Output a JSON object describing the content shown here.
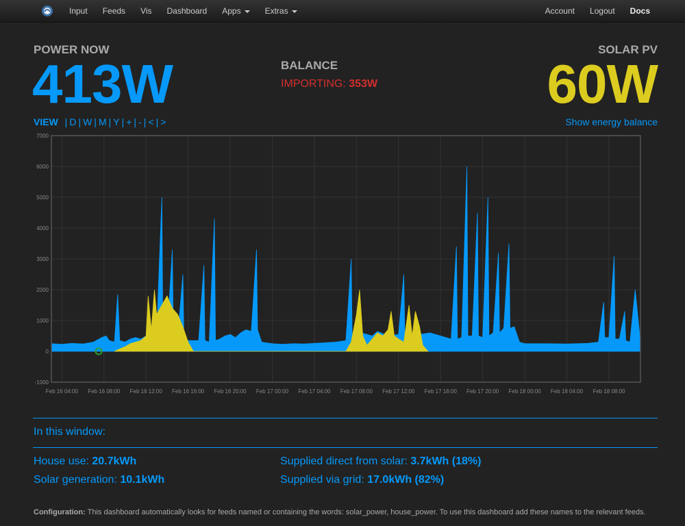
{
  "navbar": {
    "left_items": [
      {
        "label": "Input",
        "caret": false,
        "name": "nav-input"
      },
      {
        "label": "Feeds",
        "caret": false,
        "name": "nav-feeds"
      },
      {
        "label": "Vis",
        "caret": false,
        "name": "nav-vis"
      },
      {
        "label": "Dashboard",
        "caret": false,
        "name": "nav-dashboard"
      },
      {
        "label": "Apps",
        "caret": true,
        "name": "nav-apps"
      },
      {
        "label": "Extras",
        "caret": true,
        "name": "nav-extras"
      }
    ],
    "right_items": [
      {
        "label": "Account",
        "bold": false,
        "name": "nav-account"
      },
      {
        "label": "Logout",
        "bold": false,
        "name": "nav-logout"
      },
      {
        "label": "Docs",
        "bold": true,
        "name": "nav-docs"
      }
    ]
  },
  "header": {
    "power_now_label": "POWER NOW",
    "power_now_value": "413W",
    "balance_label": "BALANCE",
    "balance_prefix": "IMPORTING: ",
    "balance_value": "353W",
    "solar_label": "SOLAR PV",
    "solar_value": "60W"
  },
  "view": {
    "label": "VIEW",
    "buttons": [
      "D",
      "W",
      "M",
      "Y",
      "+",
      "-",
      "<",
      ">"
    ],
    "show_balance": "Show energy balance"
  },
  "colors": {
    "use": "#0699fa",
    "solar": "#dccc1f",
    "importing": "#d52e2e",
    "marker": "#2ca02c"
  },
  "chart_data": {
    "type": "area",
    "ylim": [
      -1000,
      7000
    ],
    "yticks": [
      -1000,
      0,
      1000,
      2000,
      3000,
      4000,
      5000,
      6000,
      7000
    ],
    "xlim_hours": [
      -1,
      55
    ],
    "xticks": [
      {
        "label": "Feb 16 04:00",
        "hour": 0
      },
      {
        "label": "Feb 16 08:00",
        "hour": 4
      },
      {
        "label": "Feb 16 12:00",
        "hour": 8
      },
      {
        "label": "Feb 16 16:00",
        "hour": 12
      },
      {
        "label": "Feb 16 20:00",
        "hour": 16
      },
      {
        "label": "Feb 17 00:00",
        "hour": 20
      },
      {
        "label": "Feb 17 04:00",
        "hour": 24
      },
      {
        "label": "Feb 17 08:00",
        "hour": 28
      },
      {
        "label": "Feb 17 12:00",
        "hour": 32
      },
      {
        "label": "Feb 17 16:00",
        "hour": 36
      },
      {
        "label": "Feb 17 20:00",
        "hour": 40
      },
      {
        "label": "Feb 18 00:00",
        "hour": 44
      },
      {
        "label": "Feb 18 04:00",
        "hour": 48
      },
      {
        "label": "Feb 18 08:00",
        "hour": 52
      }
    ],
    "grid": true,
    "series": [
      {
        "key": "house_power",
        "color": "#0699fa",
        "points": [
          [
            -1,
            250
          ],
          [
            0,
            230
          ],
          [
            1,
            260
          ],
          [
            2,
            240
          ],
          [
            3,
            300
          ],
          [
            3.8,
            450
          ],
          [
            4.2,
            500
          ],
          [
            4.5,
            350
          ],
          [
            5,
            300
          ],
          [
            5.3,
            1850
          ],
          [
            5.5,
            350
          ],
          [
            6,
            300
          ],
          [
            6.5,
            400
          ],
          [
            7,
            450
          ],
          [
            7.5,
            400
          ],
          [
            8,
            500
          ],
          [
            8.5,
            600
          ],
          [
            9,
            550
          ],
          [
            9.5,
            5000
          ],
          [
            9.6,
            600
          ],
          [
            10,
            500
          ],
          [
            10.5,
            3300
          ],
          [
            10.6,
            500
          ],
          [
            11,
            450
          ],
          [
            11.5,
            2500
          ],
          [
            11.6,
            400
          ],
          [
            12,
            350
          ],
          [
            13,
            350
          ],
          [
            13.5,
            2800
          ],
          [
            13.6,
            350
          ],
          [
            14,
            300
          ],
          [
            14.5,
            4300
          ],
          [
            14.6,
            350
          ],
          [
            15,
            400
          ],
          [
            15.5,
            500
          ],
          [
            16,
            550
          ],
          [
            16.5,
            450
          ],
          [
            17,
            600
          ],
          [
            17.5,
            700
          ],
          [
            18,
            650
          ],
          [
            18.5,
            3300
          ],
          [
            18.6,
            700
          ],
          [
            19,
            300
          ],
          [
            20,
            250
          ],
          [
            21,
            230
          ],
          [
            22,
            250
          ],
          [
            23,
            240
          ],
          [
            24,
            260
          ],
          [
            25,
            280
          ],
          [
            26,
            300
          ],
          [
            27,
            350
          ],
          [
            27.5,
            3000
          ],
          [
            27.6,
            400
          ],
          [
            28,
            500
          ],
          [
            28.5,
            600
          ],
          [
            29,
            550
          ],
          [
            29.5,
            500
          ],
          [
            30,
            650
          ],
          [
            31,
            500
          ],
          [
            32,
            550
          ],
          [
            32.5,
            2500
          ],
          [
            32.6,
            500
          ],
          [
            33,
            500
          ],
          [
            34,
            550
          ],
          [
            35,
            600
          ],
          [
            36,
            500
          ],
          [
            37,
            400
          ],
          [
            37.5,
            3400
          ],
          [
            37.6,
            400
          ],
          [
            38,
            450
          ],
          [
            38.5,
            6000
          ],
          [
            38.6,
            500
          ],
          [
            39,
            500
          ],
          [
            39.5,
            4500
          ],
          [
            39.6,
            500
          ],
          [
            40,
            450
          ],
          [
            40.5,
            5000
          ],
          [
            40.6,
            500
          ],
          [
            41,
            600
          ],
          [
            41.5,
            3200
          ],
          [
            41.6,
            600
          ],
          [
            42,
            750
          ],
          [
            42.5,
            3500
          ],
          [
            42.6,
            750
          ],
          [
            43,
            800
          ],
          [
            43.5,
            300
          ],
          [
            44,
            250
          ],
          [
            46,
            250
          ],
          [
            48,
            240
          ],
          [
            50,
            260
          ],
          [
            51,
            300
          ],
          [
            51.5,
            1600
          ],
          [
            51.6,
            450
          ],
          [
            52,
            450
          ],
          [
            52.5,
            3100
          ],
          [
            52.6,
            400
          ],
          [
            53,
            400
          ],
          [
            53.5,
            1300
          ],
          [
            53.6,
            350
          ],
          [
            54,
            300
          ],
          [
            54.5,
            2000
          ],
          [
            55,
            300
          ]
        ]
      },
      {
        "key": "solar_power",
        "color": "#dccc1f",
        "points": [
          [
            5,
            0
          ],
          [
            5.5,
            80
          ],
          [
            6,
            150
          ],
          [
            6.5,
            250
          ],
          [
            7,
            300
          ],
          [
            7.5,
            350
          ],
          [
            8,
            500
          ],
          [
            8.2,
            1800
          ],
          [
            8.5,
            700
          ],
          [
            8.8,
            2000
          ],
          [
            9,
            1200
          ],
          [
            9.5,
            1500
          ],
          [
            10,
            1800
          ],
          [
            10.5,
            1400
          ],
          [
            11,
            1200
          ],
          [
            11.5,
            800
          ],
          [
            12,
            300
          ],
          [
            12.5,
            0
          ],
          [
            27,
            0
          ],
          [
            27.5,
            300
          ],
          [
            28,
            1200
          ],
          [
            28.3,
            2000
          ],
          [
            28.6,
            500
          ],
          [
            29,
            200
          ],
          [
            29.5,
            400
          ],
          [
            30,
            600
          ],
          [
            30.5,
            500
          ],
          [
            31,
            700
          ],
          [
            31.3,
            1300
          ],
          [
            31.6,
            500
          ],
          [
            32,
            400
          ],
          [
            32.5,
            300
          ],
          [
            33,
            1500
          ],
          [
            33.3,
            500
          ],
          [
            33.6,
            1300
          ],
          [
            34,
            800
          ],
          [
            34.3,
            200
          ],
          [
            34.8,
            0
          ]
        ]
      }
    ],
    "marker": {
      "hour": 3.5,
      "value": 0
    }
  },
  "summary": {
    "heading": "In this window:",
    "house_use_label": "House use: ",
    "house_use_value": "20.7kWh",
    "solar_gen_label": "Solar generation: ",
    "solar_gen_value": "10.1kWh",
    "direct_label": "Supplied direct from solar: ",
    "direct_value": "3.7kWh (18%)",
    "grid_label": "Supplied via grid: ",
    "grid_value": "17.0kWh (82%)"
  },
  "config": {
    "label": "Configuration:",
    "text": " This dashboard automatically looks for feeds named or containing the words: solar_power, house_power. To use this dashboard add these names to the relevant feeds."
  }
}
